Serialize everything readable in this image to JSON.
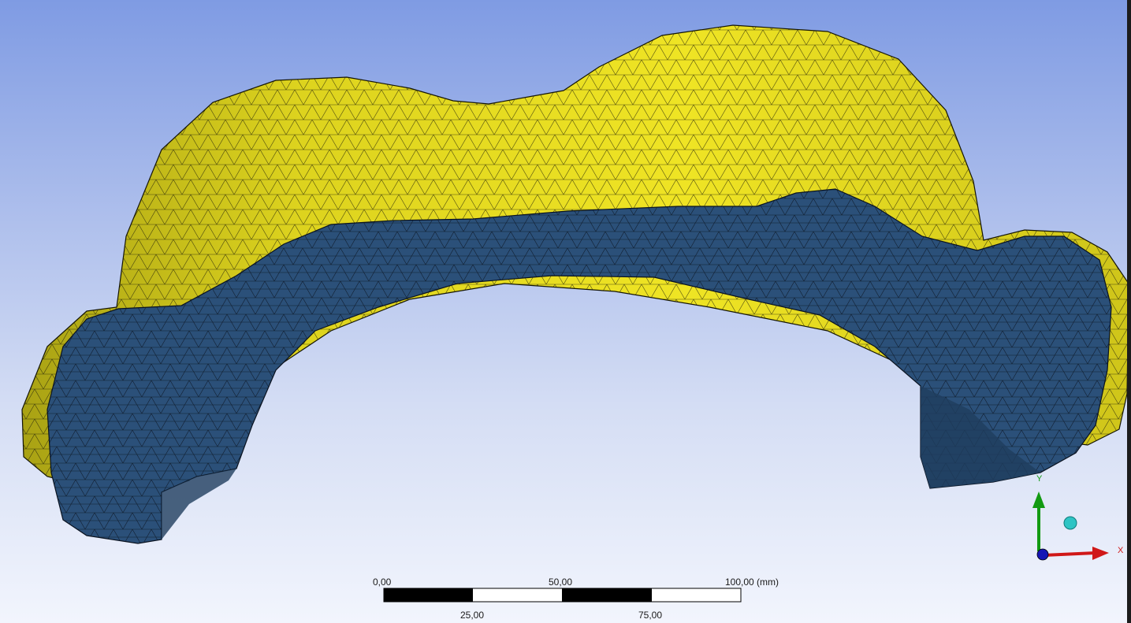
{
  "scale_bar": {
    "top_labels": [
      "0,00",
      "50,00",
      "100,00 (mm)"
    ],
    "bottom_labels": [
      "25,00",
      "75,00"
    ]
  },
  "triad": {
    "x_label": "X",
    "y_label": "Y",
    "colors": {
      "x": "#d01818",
      "y": "#129a12",
      "z": "#1515b5",
      "iso": "#2ec4c4"
    }
  },
  "model": {
    "colors": {
      "outer_shell": "#e6db1e",
      "inner_surface": "#2b5079",
      "mesh_lines": "#111111"
    }
  }
}
